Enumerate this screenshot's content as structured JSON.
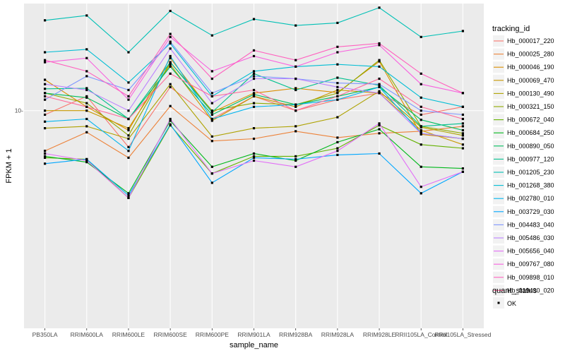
{
  "chart_data": {
    "type": "line",
    "xlabel": "sample_name",
    "ylabel": "FPKM + 1",
    "y_scale": "log10",
    "ylim": [
      0.63,
      39
    ],
    "y_ticks": [
      {
        "value": 10,
        "label": "10-"
      }
    ],
    "grid": true,
    "legend_position": "right",
    "categories": [
      "PB350LA",
      "RRIM600LA",
      "RRIM600LE",
      "RRIM600SE",
      "RRIM600PE",
      "RRIM901LA",
      "RRIM928BA",
      "RRIM928LA",
      "RRIM928LE",
      "RRII105LA_Control",
      "RRII105LA_Stressed"
    ],
    "colors": [
      "#F8766D",
      "#EC8239",
      "#DB8E00",
      "#C79800",
      "#AEA200",
      "#8FAA00",
      "#64B200",
      "#00B81B",
      "#00BD5C",
      "#00C08E",
      "#00C0B5",
      "#00BDD4",
      "#00B5EE",
      "#00A7FF",
      "#7F96FF",
      "#BC81FF",
      "#E26EF7",
      "#F863DF",
      "#FF62BF",
      "#FF6A9A"
    ],
    "series": [
      {
        "name": "Hb_000017_220",
        "values": [
          9.5,
          12.0,
          6.3,
          13.5,
          9.0,
          12.0,
          10.0,
          11.5,
          12.5,
          9.5,
          10.5
        ]
      },
      {
        "name": "Hb_000025_280",
        "values": [
          6.0,
          7.6,
          5.5,
          10.6,
          6.8,
          7.0,
          7.7,
          7.1,
          7.5,
          7.7,
          8.2
        ]
      },
      {
        "name": "Hb_000046_190",
        "values": [
          14.8,
          10.5,
          7.8,
          19.5,
          9.8,
          12.5,
          13.3,
          12.6,
          18.7,
          7.4,
          7.0
        ]
      },
      {
        "name": "Hb_000069_470",
        "values": [
          10.0,
          10.0,
          8.0,
          18.0,
          8.8,
          12.0,
          10.5,
          13.0,
          12.5,
          7.8,
          6.5
        ]
      },
      {
        "name": "Hb_000130_490",
        "values": [
          8.0,
          8.2,
          7.0,
          14.0,
          7.2,
          8.0,
          8.2,
          9.2,
          12.8,
          8.1,
          7.3
        ]
      },
      {
        "name": "Hb_000321_150",
        "values": [
          12.5,
          11.0,
          7.3,
          18.5,
          10.0,
          11.0,
          10.8,
          12.5,
          19.0,
          8.2,
          7.5
        ]
      },
      {
        "name": "Hb_000672_040",
        "values": [
          5.5,
          5.4,
          3.3,
          8.3,
          4.5,
          5.6,
          5.6,
          6.2,
          8.3,
          6.5,
          6.2
        ]
      },
      {
        "name": "Hb_000684_250",
        "values": [
          5.6,
          5.2,
          3.5,
          8.8,
          4.9,
          5.8,
          5.3,
          6.7,
          7.9,
          4.9,
          4.8
        ]
      },
      {
        "name": "Hb_000890_050",
        "values": [
          12.5,
          11.8,
          9.0,
          17.5,
          9.5,
          12.3,
          10.8,
          12.0,
          13.5,
          8.9,
          7.8
        ]
      },
      {
        "name": "Hb_000977_120",
        "values": [
          13.2,
          13.3,
          9.0,
          18.5,
          9.8,
          16.0,
          13.0,
          15.2,
          13.8,
          8.2,
          8.5
        ]
      },
      {
        "name": "Hb_001205_230",
        "values": [
          31.5,
          33.5,
          21.0,
          35.5,
          26.0,
          32.0,
          29.5,
          30.5,
          37.0,
          25.5,
          27.5
        ]
      },
      {
        "name": "Hb_001268_380",
        "values": [
          21.0,
          21.8,
          14.3,
          23.5,
          12.0,
          16.5,
          17.5,
          18.0,
          17.5,
          11.8,
          10.5
        ]
      },
      {
        "name": "Hb_002780_010",
        "values": [
          8.7,
          9.0,
          6.0,
          20.0,
          9.0,
          10.5,
          10.8,
          11.5,
          13.5,
          7.5,
          7.0
        ]
      },
      {
        "name": "Hb_003729_030",
        "values": [
          5.1,
          5.4,
          3.4,
          8.4,
          4.0,
          5.5,
          5.4,
          5.7,
          5.8,
          3.5,
          4.6
        ]
      },
      {
        "name": "Hb_004483_040",
        "values": [
          11.5,
          15.5,
          13.0,
          24.0,
          12.5,
          15.5,
          15.0,
          14.2,
          14.0,
          10.0,
          9.5
        ]
      },
      {
        "name": "Hb_005486_030",
        "values": [
          14.0,
          13.0,
          10.0,
          22.0,
          11.0,
          15.0,
          15.0,
          13.5,
          12.5,
          7.5,
          7.0
        ]
      },
      {
        "name": "Hb_005656_040",
        "values": [
          5.8,
          5.3,
          3.3,
          9.0,
          4.5,
          5.3,
          4.9,
          6.0,
          8.5,
          3.8,
          4.6
        ]
      },
      {
        "name": "Hb_009767_080",
        "values": [
          18.5,
          19.5,
          11.5,
          25.5,
          16.5,
          20.0,
          17.5,
          21.0,
          23.0,
          14.0,
          12.5
        ]
      },
      {
        "name": "Hb_009898_010",
        "values": [
          19.0,
          16.5,
          12.0,
          26.5,
          15.0,
          21.5,
          19.0,
          22.5,
          23.5,
          16.0,
          12.5
        ]
      },
      {
        "name": "Hb_019430_020",
        "values": [
          12.0,
          10.5,
          9.0,
          16.0,
          12.0,
          13.0,
          10.0,
          12.0,
          15.0,
          10.5,
          9.0
        ]
      }
    ],
    "legend": {
      "tracking_title": "tracking_id",
      "quant_title": "quant_status",
      "quant_item": "OK"
    }
  }
}
